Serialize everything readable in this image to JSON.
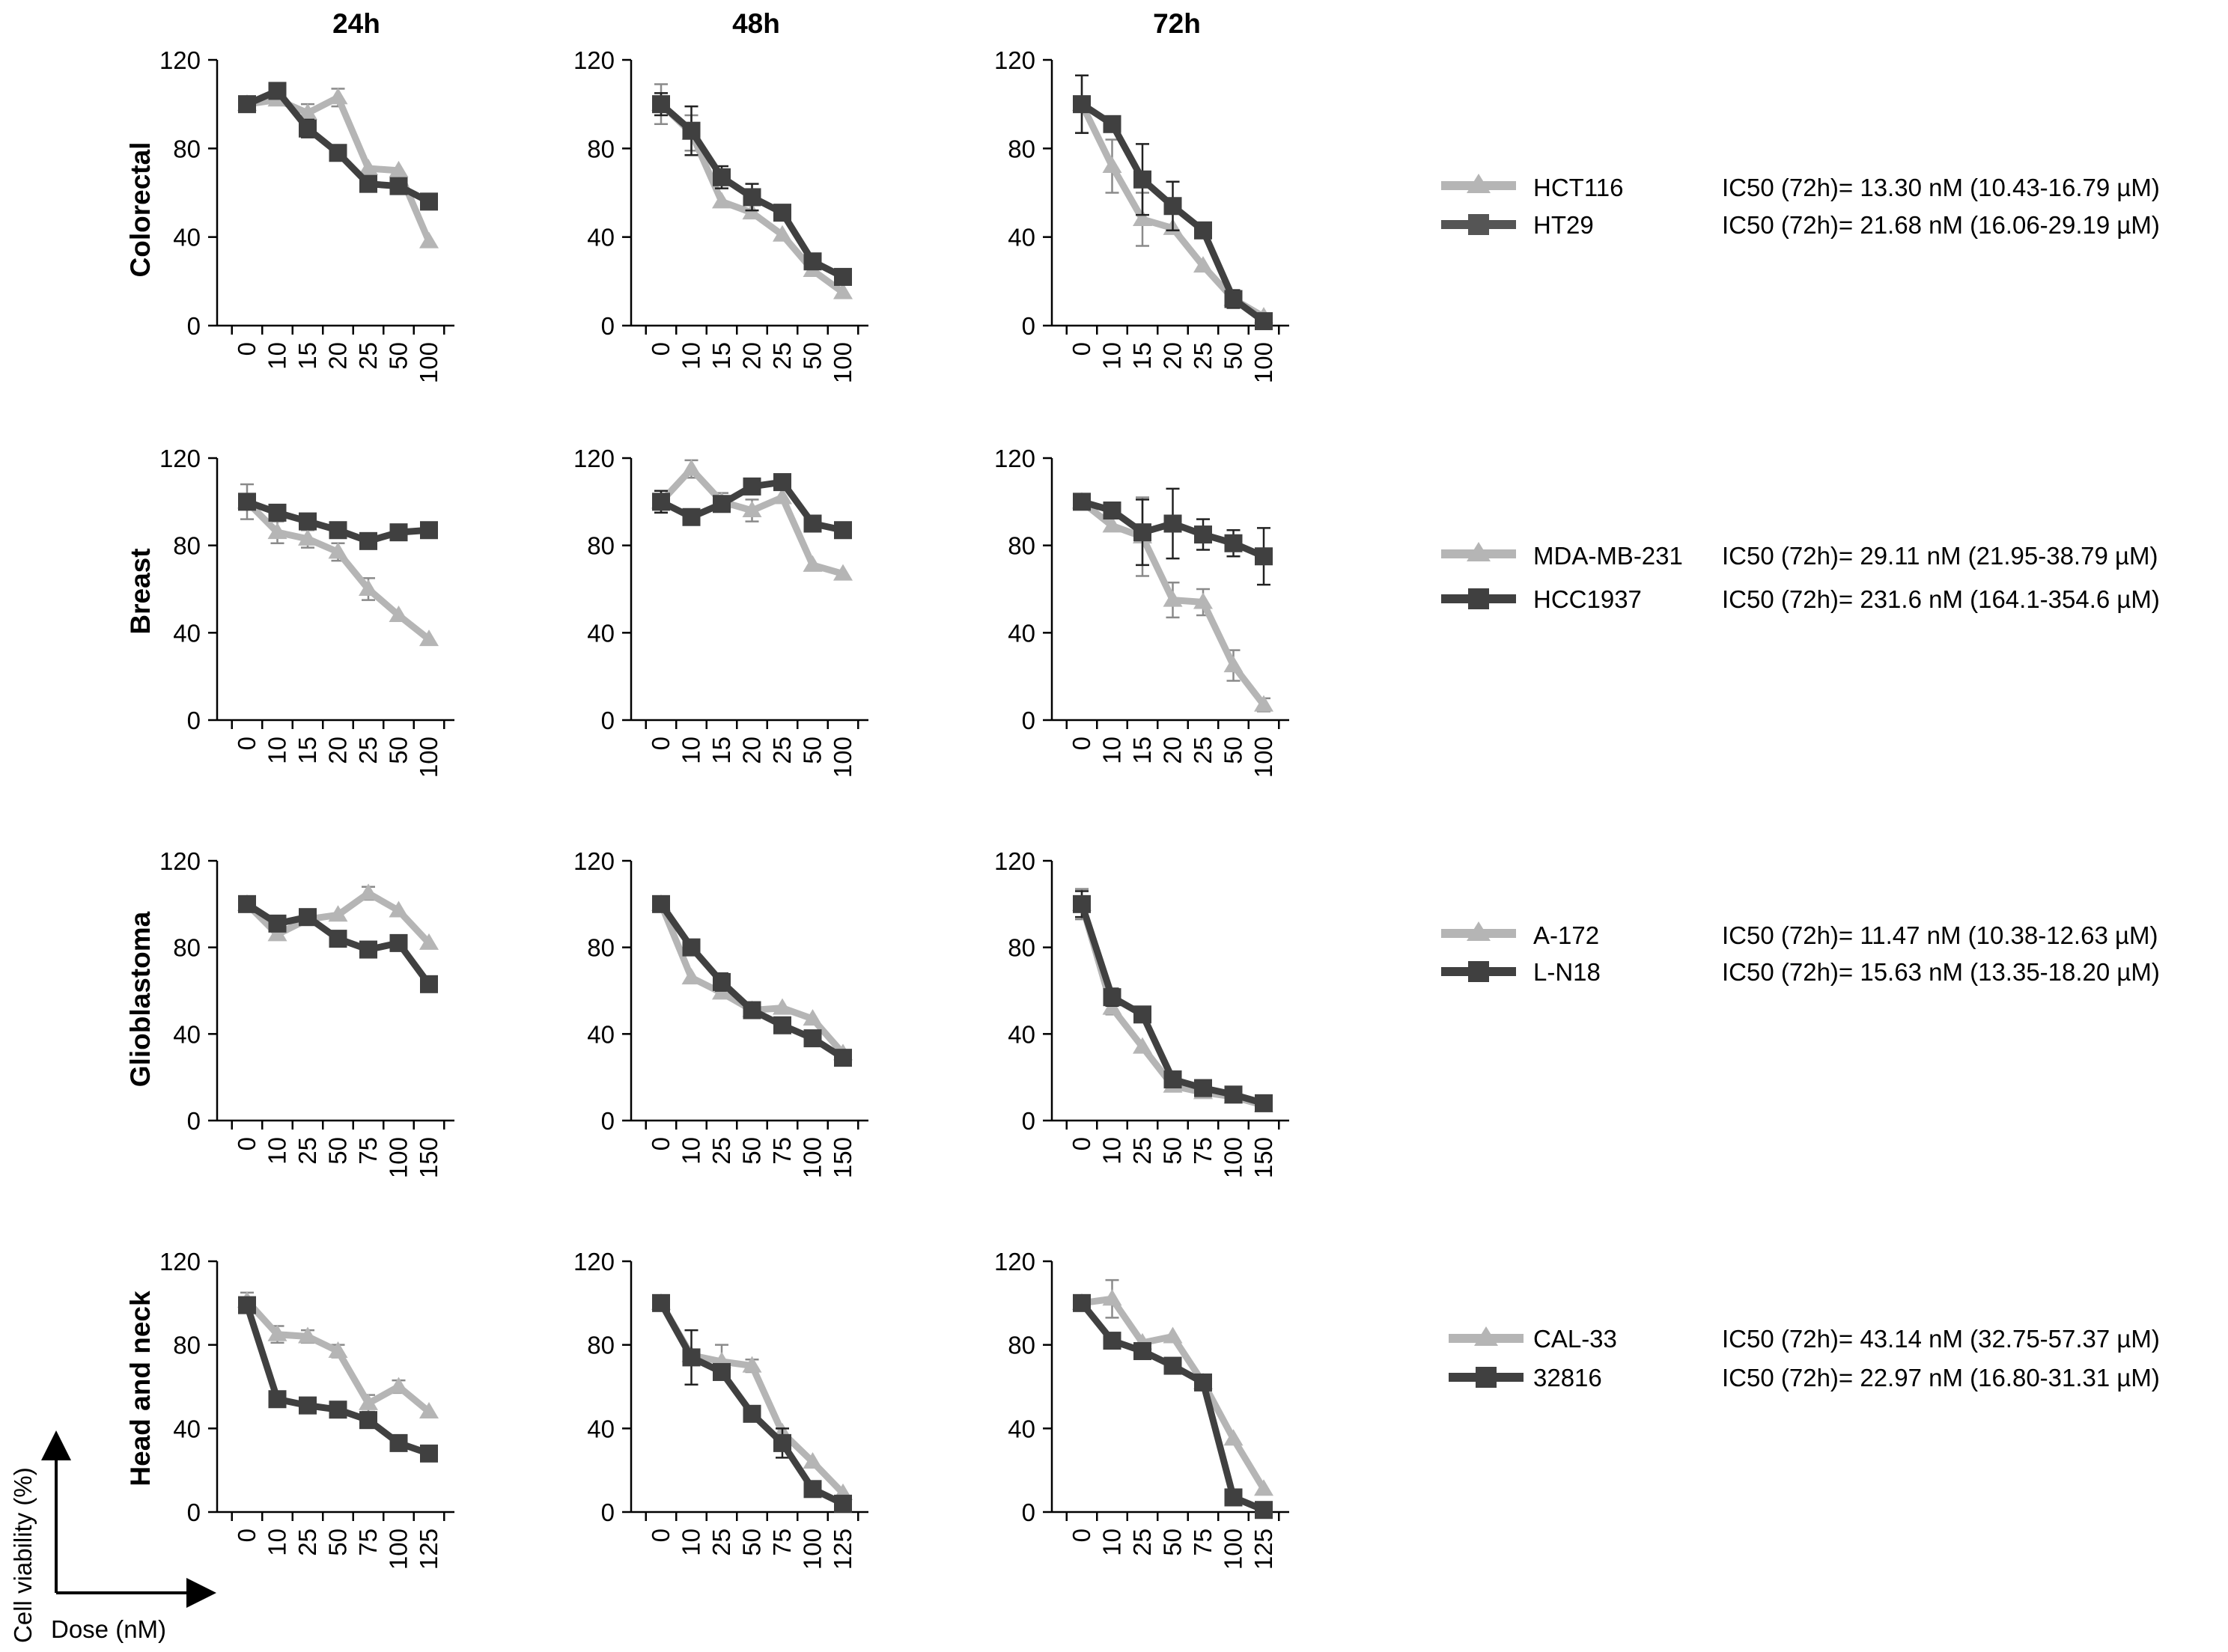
{
  "figure": {
    "column_titles": [
      "24h",
      "48h",
      "72h"
    ],
    "y_axis_indicator": "Cell viability (%)",
    "x_axis_indicator": "Dose (nM)"
  },
  "colors": {
    "light_series": "#b5b5b5",
    "dark_series": "#404040",
    "axis": "#000000",
    "text": "#000000"
  },
  "icons": {
    "light_marker": "triangle",
    "dark_marker": "square"
  },
  "rows": [
    {
      "row_label": "Colorectal",
      "legend": [
        {
          "name": "HCT116",
          "ic50": "IC50 (72h)= 13.30 nM (10.43-16.79 µM)"
        },
        {
          "name": "HT29",
          "ic50": "IC50 (72h)= 21.68 nM (16.06-29.19 µM)"
        }
      ]
    },
    {
      "row_label": "Breast",
      "legend": [
        {
          "name": "MDA-MB-231",
          "ic50": "IC50 (72h)= 29.11 nM (21.95-38.79 µM)"
        },
        {
          "name": "HCC1937",
          "ic50": "IC50 (72h)= 231.6 nM (164.1-354.6 µM)"
        }
      ]
    },
    {
      "row_label": "Glioblastoma",
      "legend": [
        {
          "name": "A-172",
          "ic50": "IC50 (72h)= 11.47 nM (10.38-12.63 µM)"
        },
        {
          "name": "L-N18",
          "ic50": "IC50 (72h)= 15.63 nM (13.35-18.20 µM)"
        }
      ]
    },
    {
      "row_label": "Head and neck",
      "legend": [
        {
          "name": "CAL-33",
          "ic50": "IC50 (72h)= 43.14 nM (32.75-57.37 µM)"
        },
        {
          "name": "32816",
          "ic50": "IC50 (72h)= 22.97 nM (16.80-31.31 µM)"
        }
      ]
    }
  ],
  "chart_data": [
    {
      "type": "line",
      "row": 0,
      "col": 0,
      "title": "24h",
      "ylabel": "Colorectal",
      "ylim": [
        0,
        120
      ],
      "yticks": [
        0,
        40,
        80,
        120
      ],
      "categories": [
        "0",
        "10",
        "15",
        "20",
        "25",
        "50",
        "100"
      ],
      "series": [
        {
          "name": "HCT116",
          "values": [
            100,
            102,
            96,
            103,
            71,
            70,
            38
          ],
          "errors": [
            0,
            2,
            4,
            4,
            0,
            0,
            0
          ]
        },
        {
          "name": "HT29",
          "values": [
            100,
            106,
            89,
            78,
            64,
            63,
            56
          ],
          "errors": [
            0,
            0,
            4,
            0,
            0,
            0,
            0
          ]
        }
      ]
    },
    {
      "type": "line",
      "row": 0,
      "col": 1,
      "title": "48h",
      "ylabel": "Colorectal",
      "ylim": [
        0,
        120
      ],
      "yticks": [
        0,
        40,
        80,
        120
      ],
      "categories": [
        "0",
        "10",
        "15",
        "20",
        "25",
        "50",
        "100"
      ],
      "series": [
        {
          "name": "HCT116",
          "values": [
            100,
            87,
            56,
            51,
            41,
            25,
            15
          ],
          "errors": [
            9,
            8,
            0,
            0,
            0,
            0,
            0
          ]
        },
        {
          "name": "HT29",
          "values": [
            100,
            88,
            67,
            58,
            51,
            29,
            22
          ],
          "errors": [
            5,
            11,
            5,
            6,
            0,
            0,
            0
          ]
        }
      ]
    },
    {
      "type": "line",
      "row": 0,
      "col": 2,
      "title": "72h",
      "ylabel": "Colorectal",
      "ylim": [
        0,
        120
      ],
      "yticks": [
        0,
        40,
        80,
        120
      ],
      "categories": [
        "0",
        "10",
        "15",
        "20",
        "25",
        "50",
        "100"
      ],
      "series": [
        {
          "name": "HCT116",
          "values": [
            100,
            72,
            48,
            44,
            27,
            12,
            4
          ],
          "errors": [
            13,
            12,
            12,
            0,
            0,
            0,
            0
          ]
        },
        {
          "name": "HT29",
          "values": [
            100,
            91,
            66,
            54,
            43,
            12,
            2
          ],
          "errors": [
            13,
            0,
            16,
            11,
            0,
            4,
            0
          ]
        }
      ]
    },
    {
      "type": "line",
      "row": 1,
      "col": 0,
      "title": "24h",
      "ylabel": "Breast",
      "ylim": [
        0,
        120
      ],
      "yticks": [
        0,
        40,
        80,
        120
      ],
      "categories": [
        "0",
        "10",
        "15",
        "20",
        "25",
        "50",
        "100"
      ],
      "series": [
        {
          "name": "MDA-MB-231",
          "values": [
            100,
            86,
            83,
            77,
            60,
            48,
            37
          ],
          "errors": [
            8,
            5,
            4,
            4,
            5,
            0,
            0
          ]
        },
        {
          "name": "HCC1937",
          "values": [
            100,
            95,
            91,
            87,
            82,
            86,
            87
          ],
          "errors": [
            0,
            0,
            0,
            0,
            0,
            0,
            0
          ]
        }
      ]
    },
    {
      "type": "line",
      "row": 1,
      "col": 1,
      "title": "48h",
      "ylabel": "Breast",
      "ylim": [
        0,
        120
      ],
      "yticks": [
        0,
        40,
        80,
        120
      ],
      "categories": [
        "0",
        "10",
        "15",
        "20",
        "25",
        "50",
        "100"
      ],
      "series": [
        {
          "name": "MDA-MB-231",
          "values": [
            100,
            115,
            100,
            96,
            102,
            71,
            67
          ],
          "errors": [
            5,
            4,
            4,
            5,
            0,
            0,
            0
          ]
        },
        {
          "name": "HCC1937",
          "values": [
            100,
            93,
            99,
            107,
            109,
            90,
            87
          ],
          "errors": [
            5,
            0,
            3,
            0,
            0,
            0,
            0
          ]
        }
      ]
    },
    {
      "type": "line",
      "row": 1,
      "col": 2,
      "title": "72h",
      "ylabel": "Breast",
      "ylim": [
        0,
        120
      ],
      "yticks": [
        0,
        40,
        80,
        120
      ],
      "categories": [
        "0",
        "10",
        "15",
        "20",
        "25",
        "50",
        "100"
      ],
      "series": [
        {
          "name": "MDA-MB-231",
          "values": [
            100,
            89,
            84,
            55,
            54,
            25,
            7
          ],
          "errors": [
            0,
            0,
            18,
            8,
            6,
            7,
            3
          ]
        },
        {
          "name": "HCC1937",
          "values": [
            100,
            96,
            86,
            90,
            85,
            81,
            75
          ],
          "errors": [
            0,
            3,
            15,
            16,
            7,
            6,
            13
          ]
        }
      ]
    },
    {
      "type": "line",
      "row": 2,
      "col": 0,
      "title": "24h",
      "ylabel": "Glioblastoma",
      "ylim": [
        0,
        120
      ],
      "yticks": [
        0,
        40,
        80,
        120
      ],
      "categories": [
        "0",
        "10",
        "25",
        "50",
        "75",
        "100",
        "150"
      ],
      "series": [
        {
          "name": "A-172",
          "values": [
            100,
            86,
            93,
            95,
            105,
            97,
            82
          ],
          "errors": [
            0,
            0,
            0,
            0,
            3,
            0,
            0
          ]
        },
        {
          "name": "L-N18",
          "values": [
            100,
            91,
            94,
            84,
            79,
            82,
            63
          ],
          "errors": [
            0,
            0,
            0,
            0,
            0,
            0,
            0
          ]
        }
      ]
    },
    {
      "type": "line",
      "row": 2,
      "col": 1,
      "title": "48h",
      "ylabel": "Glioblastoma",
      "ylim": [
        0,
        120
      ],
      "yticks": [
        0,
        40,
        80,
        120
      ],
      "categories": [
        "0",
        "10",
        "25",
        "50",
        "75",
        "100",
        "150"
      ],
      "series": [
        {
          "name": "A-172",
          "values": [
            100,
            66,
            59,
            51,
            52,
            47,
            31
          ],
          "errors": [
            3,
            0,
            0,
            0,
            0,
            0,
            0
          ]
        },
        {
          "name": "L-N18",
          "values": [
            100,
            80,
            64,
            51,
            44,
            38,
            29
          ],
          "errors": [
            0,
            0,
            4,
            0,
            0,
            0,
            0
          ]
        }
      ]
    },
    {
      "type": "line",
      "row": 2,
      "col": 2,
      "title": "72h",
      "ylabel": "Glioblastoma",
      "ylim": [
        0,
        120
      ],
      "yticks": [
        0,
        40,
        80,
        120
      ],
      "categories": [
        "0",
        "10",
        "25",
        "50",
        "75",
        "100",
        "150"
      ],
      "series": [
        {
          "name": "A-172",
          "values": [
            100,
            52,
            34,
            16,
            13,
            11,
            7
          ],
          "errors": [
            7,
            3,
            0,
            0,
            0,
            0,
            0
          ]
        },
        {
          "name": "L-N18",
          "values": [
            100,
            57,
            49,
            19,
            15,
            12,
            8
          ],
          "errors": [
            6,
            4,
            0,
            0,
            0,
            0,
            0
          ]
        }
      ]
    },
    {
      "type": "line",
      "row": 3,
      "col": 0,
      "title": "24h",
      "ylabel": "Head and neck",
      "ylim": [
        0,
        120
      ],
      "yticks": [
        0,
        40,
        80,
        120
      ],
      "categories": [
        "0",
        "10",
        "25",
        "50",
        "75",
        "100",
        "125"
      ],
      "series": [
        {
          "name": "CAL-33",
          "values": [
            101,
            85,
            84,
            77,
            52,
            60,
            48
          ],
          "errors": [
            4,
            4,
            3,
            3,
            4,
            3,
            0
          ]
        },
        {
          "name": "32816",
          "values": [
            99,
            54,
            51,
            49,
            44,
            33,
            28
          ],
          "errors": [
            3,
            0,
            0,
            0,
            0,
            0,
            0
          ]
        }
      ]
    },
    {
      "type": "line",
      "row": 3,
      "col": 1,
      "title": "48h",
      "ylabel": "Head and neck",
      "ylim": [
        0,
        120
      ],
      "yticks": [
        0,
        40,
        80,
        120
      ],
      "categories": [
        "0",
        "10",
        "25",
        "50",
        "75",
        "100",
        "125"
      ],
      "series": [
        {
          "name": "CAL-33",
          "values": [
            100,
            75,
            72,
            70,
            38,
            24,
            9
          ],
          "errors": [
            0,
            0,
            8,
            3,
            0,
            0,
            0
          ]
        },
        {
          "name": "32816",
          "values": [
            100,
            74,
            67,
            47,
            33,
            11,
            4
          ],
          "errors": [
            0,
            13,
            0,
            0,
            7,
            0,
            0
          ]
        }
      ]
    },
    {
      "type": "line",
      "row": 3,
      "col": 2,
      "title": "72h",
      "ylabel": "Head and neck",
      "ylim": [
        0,
        120
      ],
      "yticks": [
        0,
        40,
        80,
        120
      ],
      "categories": [
        "0",
        "10",
        "25",
        "50",
        "75",
        "100",
        "125"
      ],
      "series": [
        {
          "name": "CAL-33",
          "values": [
            100,
            102,
            81,
            84,
            62,
            35,
            11
          ],
          "errors": [
            0,
            9,
            0,
            0,
            0,
            0,
            0
          ]
        },
        {
          "name": "32816",
          "values": [
            100,
            82,
            77,
            70,
            62,
            7,
            1
          ],
          "errors": [
            0,
            0,
            0,
            0,
            0,
            0,
            0
          ]
        }
      ]
    }
  ]
}
